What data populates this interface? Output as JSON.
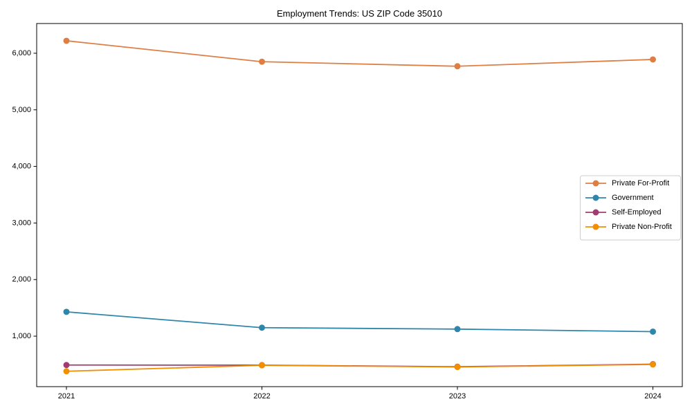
{
  "chart_data": {
    "type": "line",
    "title": "Employment Trends: US ZIP Code 35010",
    "categories": [
      "2021",
      "2022",
      "2023",
      "2024"
    ],
    "series": [
      {
        "name": "Private For-Profit",
        "color": "#DF7E42",
        "values": [
          6220,
          5850,
          5770,
          5890
        ]
      },
      {
        "name": "Government",
        "color": "#2E86AB",
        "values": [
          1430,
          1150,
          1125,
          1080
        ]
      },
      {
        "name": "Self-Employed",
        "color": "#A23B72",
        "values": [
          490,
          488,
          460,
          505
        ]
      },
      {
        "name": "Private Non-Profit",
        "color": "#F18F01",
        "values": [
          380,
          485,
          455,
          500
        ]
      }
    ],
    "yticks": [
      1000,
      2000,
      3000,
      4000,
      5000,
      6000
    ],
    "ytick_labels": [
      "1,000",
      "2,000",
      "3,000",
      "4,000",
      "5,000",
      "6,000"
    ],
    "ylim": [
      108,
      6525
    ],
    "xlabel": "",
    "ylabel": "",
    "grid": false,
    "legend_position": "center right",
    "marker": "circle",
    "background": "#ffffff",
    "axis_color": "#000000"
  }
}
